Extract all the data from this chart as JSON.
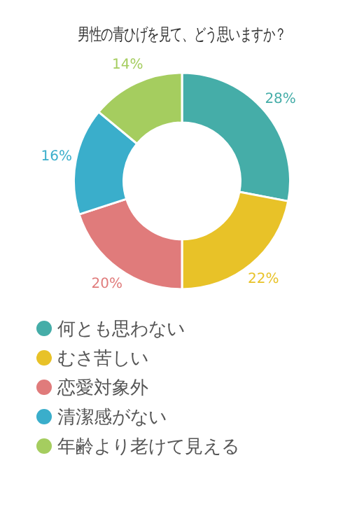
{
  "chart_data": {
    "type": "donut",
    "title": "男性の青ひげを見て、どう思いますか？",
    "categories": [
      "何とも思わない",
      "むさ苦しい",
      "恋愛対象外",
      "清潔感がない",
      "年齢より老けて見える"
    ],
    "values": [
      28,
      22,
      20,
      16,
      14
    ],
    "colors": [
      "#45ada8",
      "#e8c228",
      "#e07b7b",
      "#3aaecb",
      "#a5cd5f"
    ],
    "value_labels": [
      "28%",
      "22%",
      "20%",
      "16%",
      "14%"
    ],
    "legend": "bottom"
  }
}
